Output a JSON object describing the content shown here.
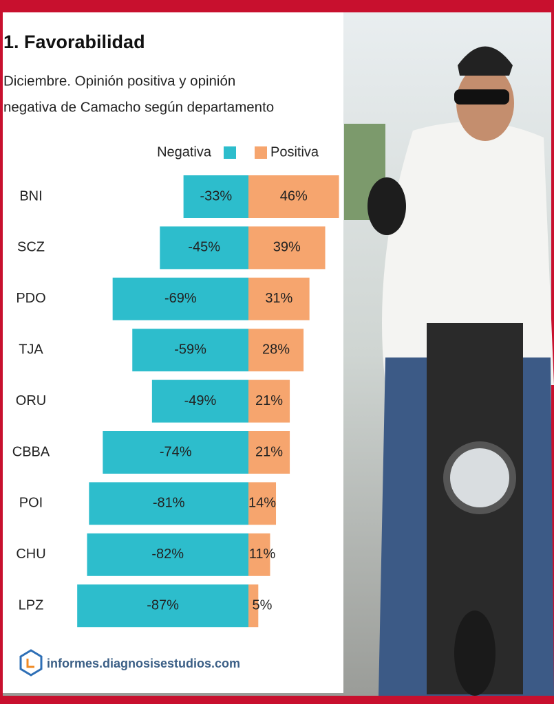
{
  "chart_data": {
    "type": "diverging-bar",
    "title": "1. Favorabilidad",
    "subtitle": [
      "Diciembre. Opinión positiva y opinión",
      "negativa de Camacho según departamento"
    ],
    "categories": [
      "BNI",
      "SCZ",
      "PDO",
      "TJA",
      "ORU",
      "CBBA",
      "POI",
      "CHU",
      "LPZ"
    ],
    "series": [
      {
        "name": "Negativa",
        "color": "#2dbdcc",
        "values": [
          -33,
          -45,
          -69,
          -59,
          -49,
          -74,
          -81,
          -82,
          -87
        ],
        "value_labels": [
          "-33%",
          "-45%",
          "-69%",
          "-59%",
          "-49%",
          "-74%",
          "-81%",
          "-82%",
          "-87%"
        ]
      },
      {
        "name": "Positiva",
        "color": "#f6a56e",
        "values": [
          46,
          39,
          31,
          28,
          21,
          21,
          14,
          11,
          5
        ],
        "value_labels": [
          "46%",
          "39%",
          "31%",
          "28%",
          "21%",
          "21%",
          "14%",
          "11%",
          "5%"
        ]
      }
    ],
    "source": "informes.diagnosisestudios.com"
  }
}
